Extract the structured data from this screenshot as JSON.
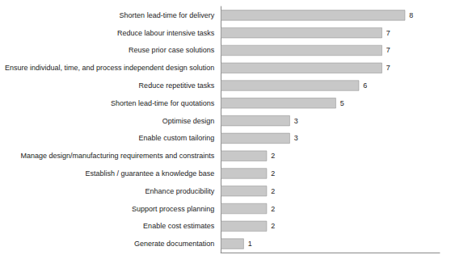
{
  "chart_data": {
    "type": "bar",
    "orientation": "horizontal",
    "categories": [
      "Generate documentation",
      "Enable cost estimates",
      "Support process planning",
      "Enhance producibility",
      "Establish / guarantee a knowledge base",
      "Manage design/manufacturing requirements and constraints",
      "Enable custom tailoring",
      "Optimise design",
      "Shorten lead-time for quotations",
      "Reduce repetitive tasks",
      "Ensure individual, time, and process independent design solution",
      "Reuse prior case solutions",
      "Reduce labour intensive tasks",
      "Shorten lead-time for delivery"
    ],
    "values": [
      1,
      2,
      2,
      2,
      2,
      2,
      3,
      3,
      5,
      6,
      7,
      7,
      7,
      8
    ],
    "color": "#c8c8c8",
    "xlim": [
      0,
      9.5
    ],
    "data_labels": true,
    "tick_labels": "y",
    "grid": false
  }
}
